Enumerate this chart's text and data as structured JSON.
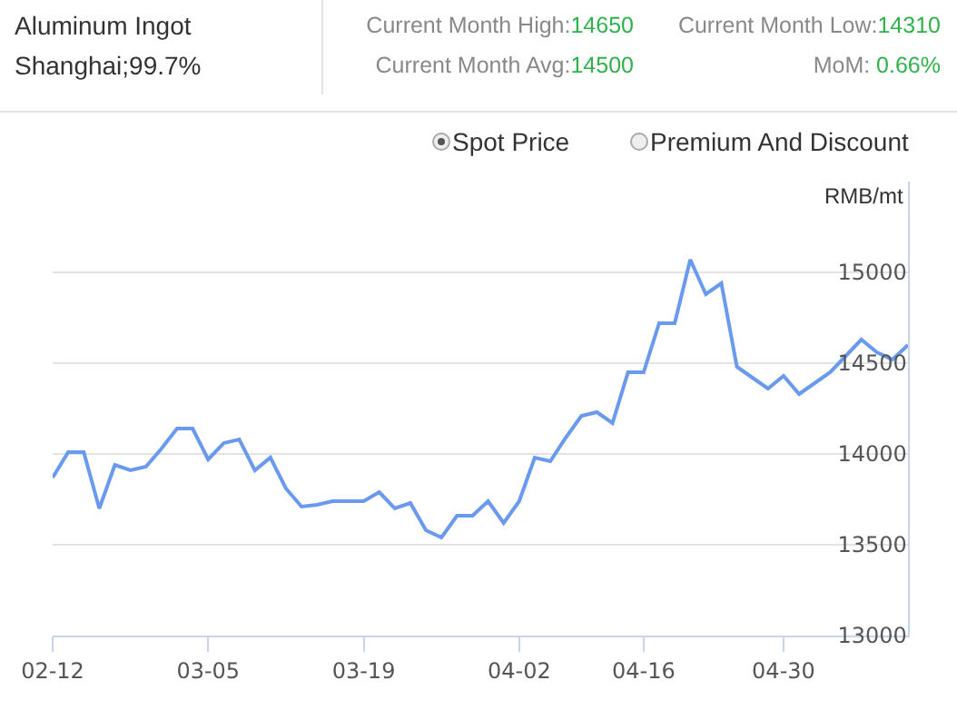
{
  "chart_data": {
    "type": "line",
    "title": "Aluminum Ingot",
    "subtitle": "Shanghai;99.7%",
    "ylabel": "RMB/mt",
    "annotations": [
      "Current Month High:14650",
      "Current Month Low:14310",
      "Current Month Avg:14500",
      "MoM: 0.66%",
      "Spot Price",
      "Premium And Discount"
    ],
    "categories": [
      "02-12",
      null,
      null,
      null,
      null,
      null,
      null,
      null,
      null,
      null,
      "03-05",
      null,
      null,
      null,
      null,
      null,
      null,
      null,
      null,
      null,
      "03-19",
      null,
      null,
      null,
      null,
      null,
      null,
      null,
      null,
      null,
      "04-02",
      null,
      null,
      null,
      null,
      null,
      null,
      null,
      "04-16",
      null,
      null,
      null,
      null,
      null,
      null,
      null,
      null,
      "04-30",
      null,
      null,
      null,
      null,
      null,
      null,
      null,
      null
    ],
    "series": [
      {
        "color": "#6a9af0",
        "values": [
          13870,
          14010,
          14010,
          13700,
          13940,
          13910,
          13930,
          14030,
          14140,
          14140,
          13970,
          14060,
          14080,
          13910,
          13980,
          13810,
          13710,
          13720,
          13740,
          13740,
          13740,
          13790,
          13700,
          13730,
          13580,
          13540,
          13660,
          13660,
          13740,
          13620,
          13740,
          13980,
          13960,
          14090,
          14210,
          14230,
          14170,
          14450,
          14450,
          14720,
          14720,
          15070,
          14880,
          14940,
          14480,
          14420,
          14360,
          14430,
          14330,
          14390,
          14450,
          14540,
          14630,
          14560,
          14520,
          14600
        ]
      }
    ],
    "ylim": [
      13000,
      15500
    ],
    "yticks": [
      13000,
      13500,
      14000,
      14500,
      15000
    ],
    "grid": "y",
    "marker": "none",
    "line_style": "solid"
  }
}
